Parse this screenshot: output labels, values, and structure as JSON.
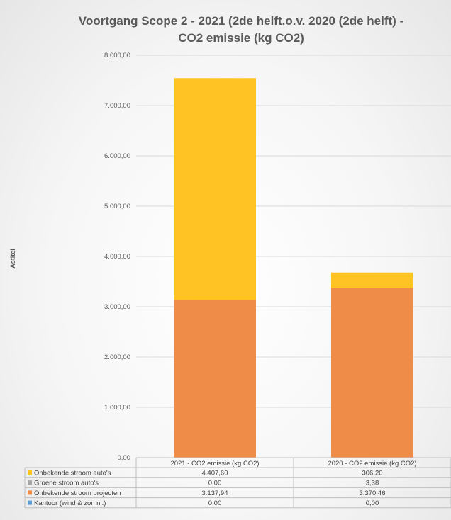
{
  "chart_data": {
    "type": "bar",
    "stacked": true,
    "title_line1": "Voortgang Scope 2 - 2021 (2de helft.o.v. 2020 (2de helft) -",
    "title_line2": "CO2 emissie (kg CO2)",
    "ylabel": "Astitel",
    "ylim": [
      0,
      8000
    ],
    "yticks": [
      "0,00",
      "1.000,00",
      "2.000,00",
      "3.000,00",
      "4.000,00",
      "5.000,00",
      "6.000,00",
      "7.000,00",
      "8.000,00"
    ],
    "grid": true,
    "categories": [
      "2021 - CO2 emissie (kg CO2)",
      "2020 - CO2 emissie (kg CO2)"
    ],
    "series": [
      {
        "name": "Onbekende stroom auto's",
        "color": "#ffc424",
        "values": [
          4407.6,
          306.2
        ],
        "labels": [
          "4.407,60",
          "306,20"
        ]
      },
      {
        "name": "Groene stroom auto's",
        "color": "#a5a5a5",
        "values": [
          0.0,
          3.38
        ],
        "labels": [
          "0,00",
          "3,38"
        ]
      },
      {
        "name": "Onbekende stroom projecten",
        "color": "#ef8c48",
        "values": [
          3137.94,
          3370.46
        ],
        "labels": [
          "3.137,94",
          "3.370,46"
        ]
      },
      {
        "name": "Kantoor (wind & zon nl.)",
        "color": "#5b9bd5",
        "values": [
          0.0,
          0.0
        ],
        "labels": [
          "0,00",
          "0,00"
        ]
      }
    ],
    "stack_order_bottom_to_top": [
      3,
      2,
      1,
      0
    ],
    "legend": "data-table"
  }
}
